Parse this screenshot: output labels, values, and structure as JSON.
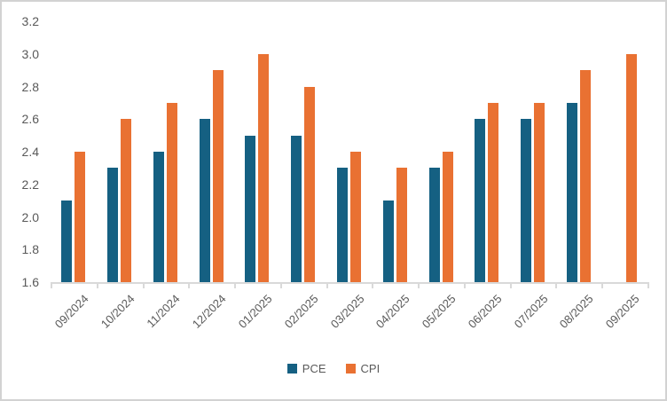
{
  "chart_data": {
    "type": "bar",
    "title": "",
    "categories": [
      "09/2024",
      "10/2024",
      "11/2024",
      "12/2024",
      "01/2025",
      "02/2025",
      "03/2025",
      "04/2025",
      "05/2025",
      "06/2025",
      "07/2025",
      "08/2025",
      "09/2025"
    ],
    "series": [
      {
        "name": "PCE",
        "color": "#156082",
        "values": [
          2.1,
          2.3,
          2.4,
          2.6,
          2.5,
          2.5,
          2.3,
          2.1,
          2.3,
          2.6,
          2.6,
          2.7,
          null
        ]
      },
      {
        "name": "CPI",
        "color": "#E97132",
        "values": [
          2.4,
          2.6,
          2.7,
          2.9,
          3.0,
          2.8,
          2.4,
          2.3,
          2.4,
          2.7,
          2.7,
          2.9,
          3.0
        ]
      }
    ],
    "y_axis": {
      "min": 1.6,
      "max": 3.2,
      "step": 0.2,
      "tick_labels": [
        "3.2",
        "3.0",
        "2.8",
        "2.6",
        "2.4",
        "2.2",
        "2.0",
        "1.8",
        "1.6"
      ]
    },
    "xlabel": "",
    "ylabel": "",
    "legend": {
      "entries": [
        "PCE",
        "CPI"
      ],
      "position": "bottom"
    },
    "grid": false,
    "axis_color": "#d9d9d9",
    "label_color": "#595959"
  }
}
